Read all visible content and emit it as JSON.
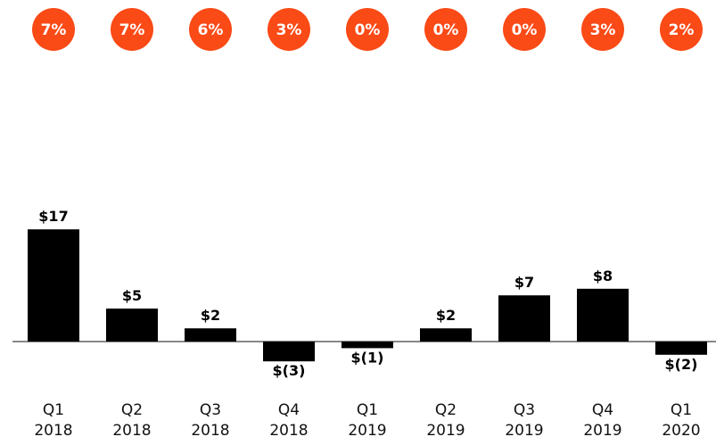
{
  "chart_data": {
    "type": "bar",
    "categories": [
      "Q1 2018",
      "Q2 2018",
      "Q3 2018",
      "Q4 2018",
      "Q1 2019",
      "Q2 2019",
      "Q3 2019",
      "Q4 2019",
      "Q1 2020"
    ],
    "values": [
      17,
      5,
      2,
      -3,
      -1,
      2,
      7,
      8,
      -2
    ],
    "value_labels": [
      "$17",
      "$5",
      "$2",
      "$(3)",
      "$(1)",
      "$2",
      "$7",
      "$8",
      "$(2)"
    ],
    "color": "#000000",
    "annotations": {
      "values": [
        7,
        7,
        6,
        3,
        0,
        0,
        0,
        3,
        2
      ],
      "value_labels": [
        "7%",
        "7%",
        "6%",
        "3%",
        "0%",
        "0%",
        "0%",
        "3%",
        "2%"
      ],
      "color": "#fa4a16"
    }
  }
}
